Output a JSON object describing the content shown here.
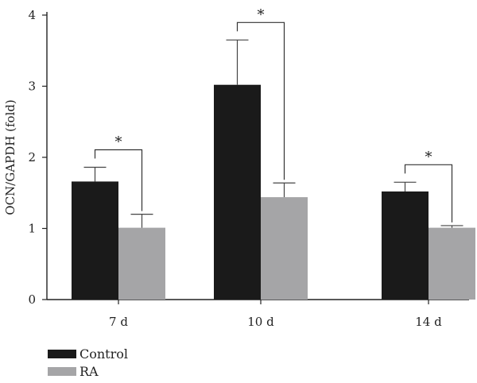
{
  "chart_data": {
    "type": "bar",
    "categories": [
      "7 d",
      "10 d",
      "14 d"
    ],
    "series": [
      {
        "name": "Control",
        "color": "#1a1a1a",
        "values": [
          1.66,
          3.02,
          1.52
        ],
        "errors": [
          0.2,
          0.63,
          0.13
        ]
      },
      {
        "name": "RA",
        "color": "#a5a5a7",
        "values": [
          1.01,
          1.44,
          1.01
        ],
        "errors": [
          0.19,
          0.2,
          0.03
        ]
      }
    ],
    "ylabel": "OCN/GAPDH (fold)",
    "xlabel": "",
    "ylim": [
      0,
      4
    ],
    "yticks": [
      0,
      1,
      2,
      3,
      4
    ],
    "significance": [
      {
        "category": "7 d",
        "label": "*"
      },
      {
        "category": "10 d",
        "label": "*"
      },
      {
        "category": "14 d",
        "label": "*"
      }
    ],
    "legend_position": "bottom-left",
    "grid": false
  }
}
